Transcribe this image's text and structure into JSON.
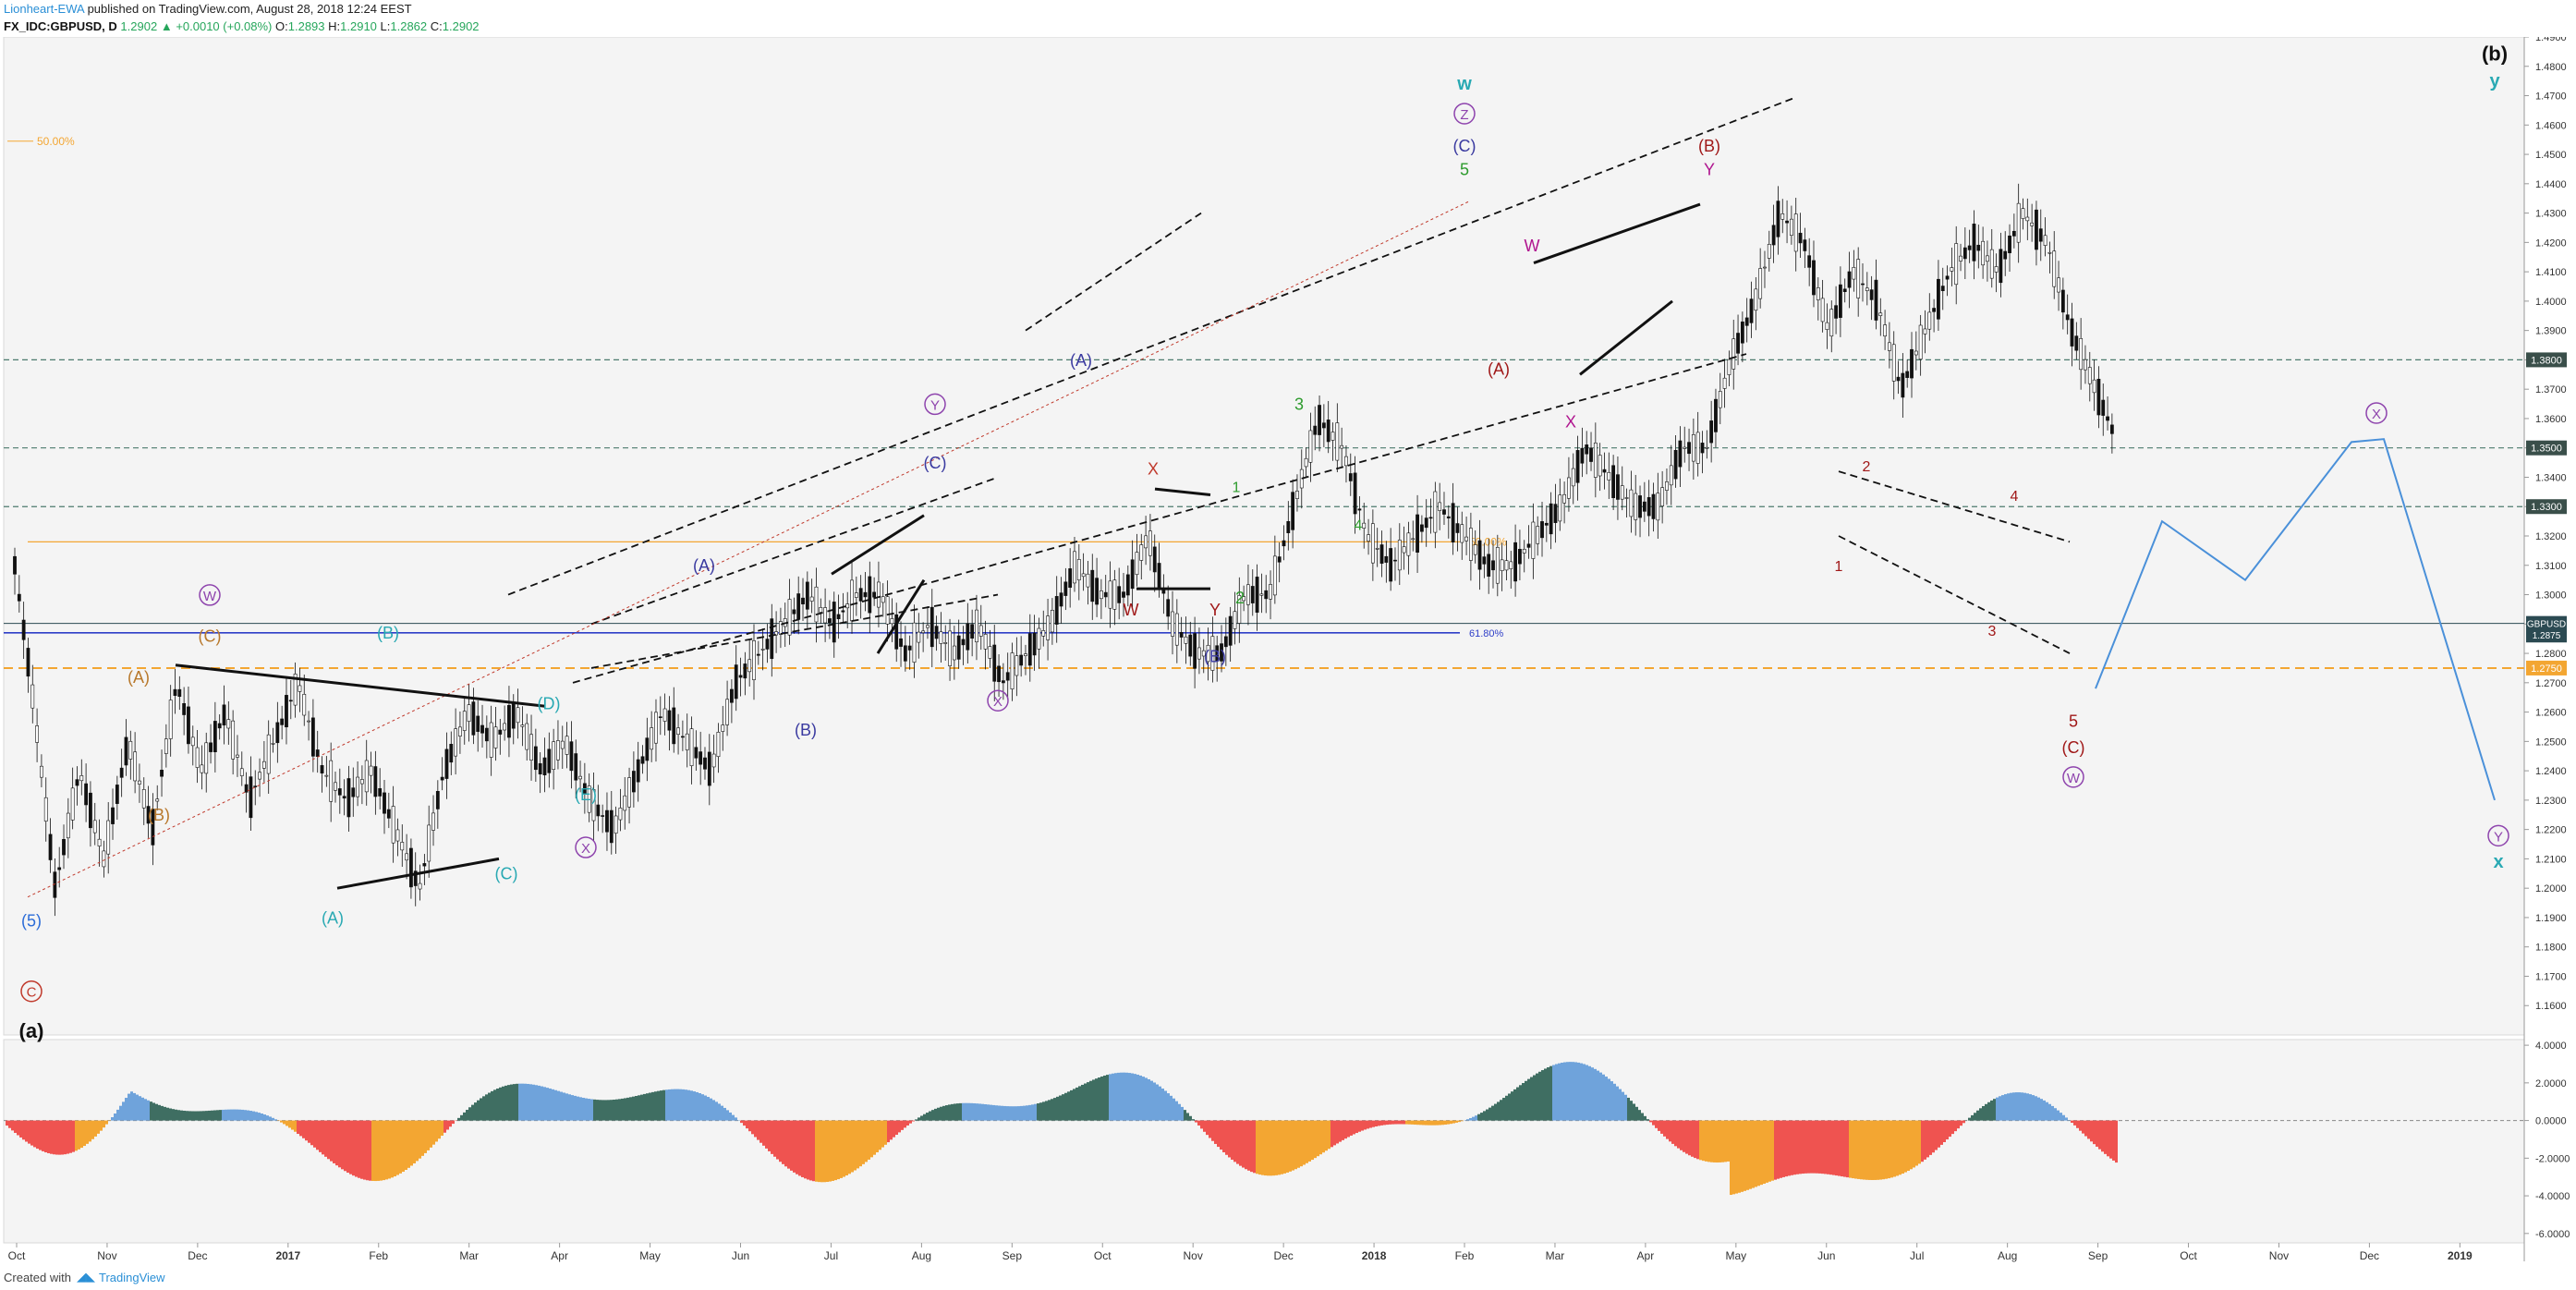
{
  "header": {
    "author": "Lionheart-EWA",
    "published_text": "published on TradingView.com, August 28, 2018 12:24 EEST",
    "symbol": "FX_IDC:GBPUSD, D",
    "last": "1.2902",
    "change_arrow": "▲",
    "change": "+0.0010 (+0.08%)",
    "o_label": "O:",
    "o_value": "1.2893",
    "h_label": "H:",
    "h_value": "1.2910",
    "l_label": "L:",
    "l_value": "1.2862",
    "c_label": "C:",
    "c_value": "1.2902"
  },
  "footer": {
    "created_with": "Created with",
    "brand": "TradingView"
  },
  "chart_data": {
    "type": "line",
    "title": "",
    "ylim": [
      1.15,
      1.49
    ],
    "x_months": [
      "Oct",
      "Nov",
      "Dec",
      "2017",
      "Feb",
      "Mar",
      "Apr",
      "May",
      "Jun",
      "Jul",
      "Aug",
      "Sep",
      "Oct",
      "Nov",
      "Dec",
      "2018",
      "Feb",
      "Mar",
      "Apr",
      "May",
      "Jun",
      "Jul",
      "Aug",
      "Sep",
      "Oct",
      "Nov",
      "Dec",
      "2019"
    ],
    "y_ticks": [
      "1.4900",
      "1.4800",
      "1.4700",
      "1.4600",
      "1.4500",
      "1.4400",
      "1.4300",
      "1.4200",
      "1.4100",
      "1.4000",
      "1.3900",
      "1.3800",
      "1.3700",
      "1.3600",
      "1.3500",
      "1.3400",
      "1.3300",
      "1.3200",
      "1.3100",
      "1.3000",
      "1.2900",
      "1.2800",
      "1.2700",
      "1.2600",
      "1.2500",
      "1.2400",
      "1.2300",
      "1.2200",
      "1.2100",
      "1.2000",
      "1.1900",
      "1.1800",
      "1.1700",
      "1.1600"
    ],
    "price_path": [
      [
        0,
        1.31
      ],
      [
        2,
        1.27
      ],
      [
        5,
        1.2
      ],
      [
        8,
        1.24
      ],
      [
        11,
        1.21
      ],
      [
        14,
        1.25
      ],
      [
        17,
        1.22
      ],
      [
        20,
        1.27
      ],
      [
        23,
        1.24
      ],
      [
        26,
        1.26
      ],
      [
        29,
        1.23
      ],
      [
        32,
        1.25
      ],
      [
        35,
        1.27
      ],
      [
        38,
        1.24
      ],
      [
        41,
        1.23
      ],
      [
        44,
        1.24
      ],
      [
        47,
        1.22
      ],
      [
        50,
        1.2
      ],
      [
        53,
        1.24
      ],
      [
        56,
        1.26
      ],
      [
        59,
        1.25
      ],
      [
        62,
        1.26
      ],
      [
        65,
        1.24
      ],
      [
        68,
        1.25
      ],
      [
        71,
        1.23
      ],
      [
        74,
        1.22
      ],
      [
        77,
        1.24
      ],
      [
        80,
        1.26
      ],
      [
        83,
        1.25
      ],
      [
        86,
        1.24
      ],
      [
        89,
        1.27
      ],
      [
        92,
        1.28
      ],
      [
        95,
        1.29
      ],
      [
        98,
        1.3
      ],
      [
        101,
        1.29
      ],
      [
        104,
        1.3
      ],
      [
        107,
        1.3
      ],
      [
        110,
        1.28
      ],
      [
        113,
        1.29
      ],
      [
        116,
        1.28
      ],
      [
        119,
        1.29
      ],
      [
        122,
        1.27
      ],
      [
        125,
        1.28
      ],
      [
        128,
        1.29
      ],
      [
        131,
        1.31
      ],
      [
        134,
        1.3
      ],
      [
        137,
        1.3
      ],
      [
        140,
        1.32
      ],
      [
        143,
        1.29
      ],
      [
        146,
        1.28
      ],
      [
        149,
        1.28
      ],
      [
        152,
        1.3
      ],
      [
        155,
        1.3
      ],
      [
        158,
        1.33
      ],
      [
        161,
        1.36
      ],
      [
        164,
        1.35
      ],
      [
        167,
        1.32
      ],
      [
        170,
        1.31
      ],
      [
        173,
        1.32
      ],
      [
        176,
        1.33
      ],
      [
        179,
        1.32
      ],
      [
        182,
        1.31
      ],
      [
        185,
        1.31
      ],
      [
        188,
        1.32
      ],
      [
        191,
        1.33
      ],
      [
        194,
        1.35
      ],
      [
        197,
        1.34
      ],
      [
        200,
        1.33
      ],
      [
        203,
        1.33
      ],
      [
        206,
        1.35
      ],
      [
        209,
        1.35
      ],
      [
        212,
        1.38
      ],
      [
        215,
        1.4
      ],
      [
        218,
        1.43
      ],
      [
        221,
        1.42
      ],
      [
        224,
        1.39
      ],
      [
        227,
        1.41
      ],
      [
        230,
        1.4
      ],
      [
        233,
        1.37
      ],
      [
        236,
        1.39
      ],
      [
        239,
        1.41
      ],
      [
        242,
        1.42
      ],
      [
        245,
        1.41
      ],
      [
        248,
        1.43
      ],
      [
        251,
        1.42
      ],
      [
        254,
        1.39
      ],
      [
        257,
        1.37
      ],
      [
        260,
        1.35
      ],
      [
        263,
        1.35
      ],
      [
        266,
        1.34
      ],
      [
        269,
        1.32
      ],
      [
        272,
        1.34
      ],
      [
        275,
        1.33
      ],
      [
        278,
        1.32
      ],
      [
        281,
        1.31
      ],
      [
        284,
        1.33
      ],
      [
        287,
        1.31
      ],
      [
        290,
        1.32
      ],
      [
        293,
        1.31
      ],
      [
        296,
        1.29
      ],
      [
        299,
        1.27
      ],
      [
        302,
        1.28
      ],
      [
        305,
        1.29
      ],
      [
        308,
        1.29
      ]
    ],
    "horizontal_levels": [
      {
        "value": 1.38,
        "label": "1.3800"
      },
      {
        "value": 1.35,
        "label": "1.3500"
      },
      {
        "value": 1.33,
        "label": "1.3300"
      },
      {
        "value": 1.275,
        "label": "1.2750"
      }
    ],
    "price_tags": [
      {
        "label": "GBPUSD",
        "value": 1.2902
      },
      {
        "value": 1.2875,
        "label": "1.2875"
      }
    ],
    "fib_labels": {
      "left_50": "50.00%",
      "mid_50": "50.00%",
      "fib_618": "61.80%"
    },
    "wave_labels": {
      "a_bold": "(a)",
      "b_bold": "(b)",
      "five_paren": "(5)",
      "c_circle": "C",
      "w_circle": "W",
      "x_circle": "X",
      "y_circle": "Y",
      "z_circle": "Z",
      "A": "(A)",
      "B": "(B)",
      "C": "(C)",
      "D": "(D)",
      "E": "(E)",
      "W": "W",
      "X": "X",
      "Y": "Y",
      "w": "w",
      "x": "x",
      "y": "y",
      "n1": "1",
      "n2": "2",
      "n3": "3",
      "n4": "4",
      "n5": "5"
    },
    "oscillator": {
      "ylim": [
        -6.5,
        4.3
      ],
      "ticks": [
        "4.0000",
        "2.0000",
        "0.0000",
        "-2.0000",
        "-4.0000",
        "-6.0000"
      ]
    },
    "colors": {
      "bull": "#26a69a",
      "bear": "#ef5350",
      "green_label": "#2d9b2d",
      "dark_red": "#a01818",
      "purple": "#8e44ad",
      "blue": "#2b6cd8",
      "teal": "#29a9b3",
      "orange": "#f3a632",
      "projection": "#4a90d9"
    }
  }
}
